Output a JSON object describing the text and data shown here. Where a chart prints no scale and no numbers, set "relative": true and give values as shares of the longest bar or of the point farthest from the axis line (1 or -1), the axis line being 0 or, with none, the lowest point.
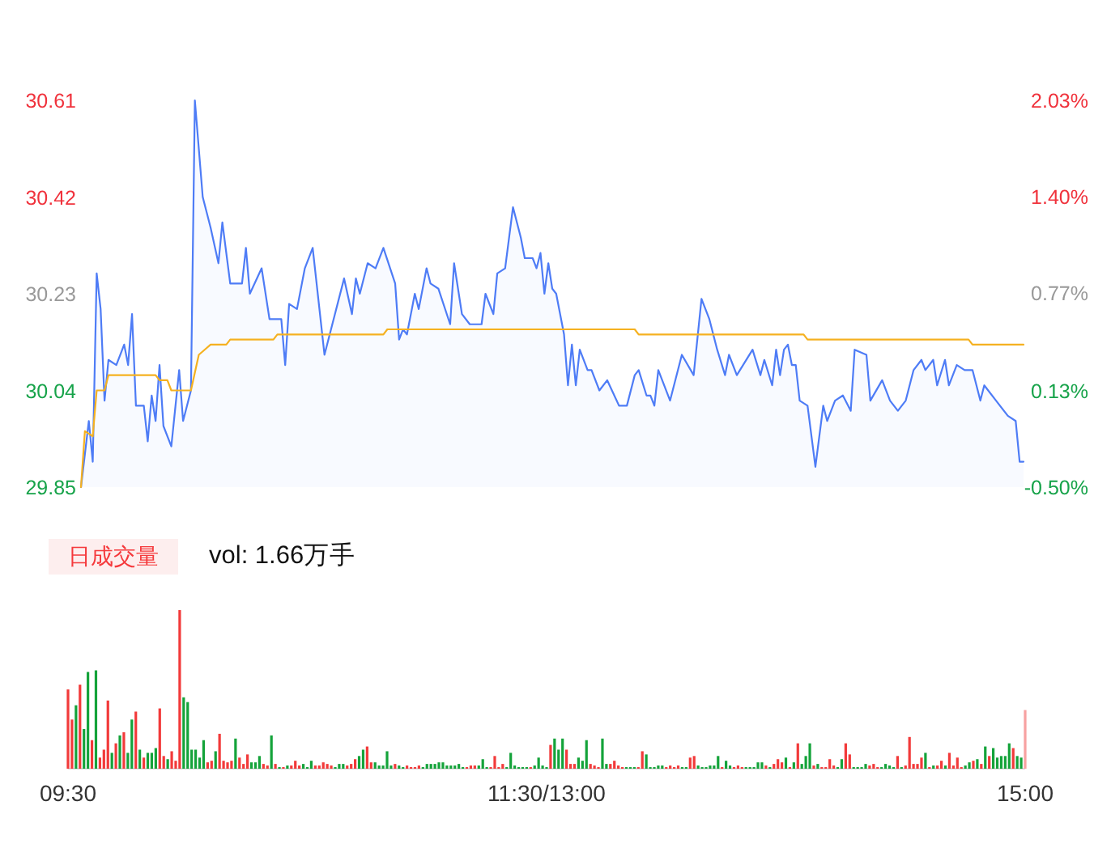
{
  "chart_data": [
    {
      "type": "area",
      "categories": [
        null,
        null,
        null,
        null,
        null,
        null,
        null,
        null,
        null,
        null,
        null,
        null,
        null,
        null,
        null,
        null,
        null,
        null,
        null,
        null,
        null,
        null,
        null,
        null,
        null,
        null,
        null,
        null,
        null,
        null,
        null,
        null,
        null,
        null,
        null,
        null,
        null,
        null,
        null,
        null,
        null,
        null,
        null,
        null,
        null,
        null,
        null,
        null,
        null,
        null,
        null,
        null,
        null,
        null,
        null,
        null,
        null,
        null,
        null,
        null,
        null,
        null,
        null,
        null,
        null,
        null,
        null,
        null,
        null,
        null,
        null,
        null,
        null,
        null,
        null,
        null,
        null,
        null,
        null,
        null,
        null,
        null,
        null,
        null,
        null,
        null,
        null,
        null,
        null,
        null,
        null,
        null,
        null,
        null,
        null,
        null,
        null,
        null,
        null,
        null,
        null,
        null,
        null,
        null,
        null,
        null,
        null,
        null,
        null,
        null,
        null,
        null,
        null,
        null,
        null,
        null,
        null,
        null,
        null,
        null,
        null,
        null,
        null,
        null,
        null,
        null,
        null,
        null,
        null,
        null,
        null,
        null,
        null,
        null,
        null,
        null,
        null,
        null,
        null,
        null,
        null,
        null,
        null,
        null,
        null,
        null,
        null,
        null,
        null,
        null,
        null,
        null,
        null,
        null,
        null,
        null,
        null,
        null,
        null,
        null,
        null,
        null,
        null,
        null,
        null,
        null,
        null,
        null,
        null,
        null,
        null,
        null,
        null,
        null,
        null,
        null,
        null,
        null,
        null,
        null,
        null,
        null,
        null,
        null,
        null,
        null,
        null,
        null,
        null,
        null,
        null,
        null,
        null,
        null,
        null,
        null,
        null,
        null,
        null,
        null,
        null,
        null,
        null,
        null,
        null,
        null,
        null,
        null,
        null,
        null,
        null,
        null,
        null,
        null,
        null,
        null,
        null,
        null,
        null,
        null,
        null,
        null,
        null,
        null,
        null,
        null,
        null,
        null,
        null,
        null,
        null,
        null,
        null,
        null,
        null,
        null,
        null,
        null,
        null,
        null,
        null
      ],
      "ylim": [
        29.85,
        30.61
      ],
      "yticks": [
        29.85,
        30.04,
        30.23,
        30.42,
        30.61
      ],
      "y2lim": [
        -0.5,
        2.03
      ],
      "y2ticks": [
        {
          "value": -0.5,
          "label": "-0.50%"
        },
        {
          "value": 0.13,
          "label": "0.13%"
        },
        {
          "value": 0.77,
          "label": "0.77%"
        },
        {
          "value": 1.4,
          "label": "1.40%"
        },
        {
          "value": 2.03,
          "label": "2.03%"
        }
      ],
      "tick_labels": "y",
      "series": [
        {
          "type": "area",
          "color": "#4e7cf6",
          "values": [
            29.85,
            null,
            29.98,
            29.9,
            30.27,
            30.2,
            30.02,
            30.1,
            null,
            30.09,
            null,
            30.13,
            30.09,
            30.19,
            30.01,
            null,
            30.01,
            29.94,
            30.03,
            29.98,
            30.09,
            29.97,
            null,
            29.93,
            null,
            30.08,
            29.98,
            null,
            30.04,
            30.61,
            null,
            30.42,
            null,
            30.36,
            null,
            30.29,
            30.37,
            null,
            30.25,
            null,
            null,
            30.25,
            30.32,
            30.23,
            null,
            null,
            30.28,
            null,
            30.18,
            null,
            null,
            30.18,
            30.09,
            30.21,
            null,
            30.2,
            null,
            30.28,
            null,
            30.32,
            null,
            null,
            30.11,
            null,
            30.17,
            null,
            null,
            30.26,
            null,
            30.19,
            30.26,
            30.23,
            null,
            30.29,
            null,
            30.28,
            null,
            30.32,
            null,
            null,
            30.25,
            30.14,
            30.16,
            30.15,
            null,
            30.23,
            30.2,
            null,
            30.28,
            30.25,
            null,
            30.24,
            null,
            null,
            30.17,
            30.29,
            null,
            30.19,
            null,
            30.17,
            null,
            null,
            30.17,
            30.23,
            null,
            30.19,
            30.27,
            null,
            30.28,
            null,
            30.4,
            null,
            30.34,
            30.3,
            null,
            30.3,
            30.28,
            30.31,
            30.23,
            30.29,
            30.24,
            30.23,
            null,
            30.15,
            30.05,
            30.13,
            30.05,
            30.12,
            null,
            30.08,
            30.08,
            null,
            30.04,
            null,
            30.06,
            null,
            null,
            30.01,
            null,
            30.01,
            null,
            30.07,
            30.08,
            null,
            30.03,
            30.03,
            30.01,
            30.08,
            null,
            null,
            30.02,
            null,
            null,
            30.11,
            null,
            null,
            30.07,
            null,
            30.22,
            null,
            30.18,
            null,
            30.12,
            null,
            30.07,
            30.11,
            null,
            30.07,
            null,
            null,
            null,
            30.12,
            null,
            30.07,
            30.1,
            null,
            30.05,
            30.12,
            30.07,
            30.12,
            30.13,
            30.09,
            30.09,
            30.02,
            null,
            30.01,
            null,
            29.89,
            null,
            30.01,
            29.98,
            null,
            30.02,
            null,
            30.03,
            null,
            30.0,
            30.12,
            null,
            null,
            30.11,
            30.02,
            null,
            null,
            30.06,
            null,
            30.02,
            null,
            30.0,
            null,
            30.02,
            null,
            30.08,
            null,
            30.1,
            30.08,
            null,
            30.1,
            30.05,
            null,
            30.1,
            30.05,
            null,
            30.09,
            null,
            30.08,
            null,
            30.08,
            null,
            30.02,
            30.05,
            null,
            null,
            30.02,
            null,
            null,
            29.99,
            null,
            29.98,
            29.9,
            29.9
          ]
        },
        {
          "type": "line",
          "color": "#f5b120",
          "values": [
            29.85,
            29.96,
            null,
            29.95,
            30.04,
            30.04,
            30.04,
            30.07,
            30.07,
            30.07,
            30.07,
            30.07,
            30.07,
            30.07,
            30.07,
            30.07,
            30.07,
            30.07,
            30.07,
            30.07,
            30.06,
            30.06,
            30.06,
            30.04,
            30.04,
            30.04,
            30.04,
            30.04,
            30.04,
            null,
            30.11,
            null,
            null,
            30.13,
            30.13,
            30.13,
            30.13,
            30.13,
            30.14,
            30.14,
            30.14,
            30.14,
            30.14,
            30.14,
            30.14,
            30.14,
            30.14,
            30.14,
            30.14,
            30.14,
            30.15,
            30.15,
            30.15,
            30.15,
            30.15,
            30.15,
            30.15,
            30.15,
            30.15,
            30.15,
            30.15,
            30.15,
            30.15,
            30.15,
            30.15,
            30.15,
            30.15,
            30.15,
            30.15,
            30.15,
            30.15,
            30.15,
            30.15,
            30.15,
            30.15,
            30.15,
            30.15,
            30.15,
            30.16,
            30.16,
            30.16,
            30.16,
            30.16,
            30.16,
            30.16,
            30.16,
            30.16,
            30.16,
            30.16,
            30.16,
            30.16,
            30.16,
            30.16,
            30.16,
            30.16,
            30.16,
            30.16,
            30.16,
            30.16,
            30.16,
            30.16,
            30.16,
            30.16,
            30.16,
            30.16,
            30.16,
            30.16,
            30.16,
            30.16,
            30.16,
            30.16,
            30.16,
            30.16,
            30.16,
            30.16,
            30.16,
            30.16,
            30.16,
            30.16,
            30.16,
            30.16,
            30.16,
            30.16,
            30.16,
            30.16,
            30.16,
            30.16,
            30.16,
            30.16,
            30.16,
            30.16,
            30.16,
            30.16,
            30.16,
            30.16,
            30.16,
            30.16,
            30.16,
            30.16,
            30.16,
            30.16,
            30.16,
            30.15,
            30.15,
            30.15,
            30.15,
            30.15,
            30.15,
            30.15,
            30.15,
            30.15,
            30.15,
            30.15,
            30.15,
            30.15,
            30.15,
            30.15,
            30.15,
            30.15,
            30.15,
            30.15,
            30.15,
            30.15,
            30.15,
            30.15,
            30.15,
            30.15,
            30.15,
            30.15,
            30.15,
            30.15,
            30.15,
            30.15,
            30.15,
            30.15,
            30.15,
            30.15,
            30.15,
            30.15,
            30.15,
            30.15,
            30.15,
            30.15,
            30.15,
            30.15,
            30.14,
            30.14,
            30.14,
            30.14,
            30.14,
            30.14,
            30.14,
            30.14,
            30.14,
            30.14,
            30.14,
            30.14,
            30.14,
            30.14,
            30.14,
            30.14,
            30.14,
            30.14,
            30.14,
            30.14,
            30.14,
            30.14,
            30.14,
            30.14,
            30.14,
            30.14,
            30.14,
            30.14,
            30.14,
            30.14,
            30.14,
            30.14,
            30.14,
            30.14,
            30.14,
            30.14,
            30.14,
            30.14,
            30.14,
            30.14,
            30.14,
            30.14,
            30.13,
            30.13,
            30.13,
            30.13,
            30.13,
            30.13,
            30.13,
            30.13,
            30.13,
            30.13,
            30.13,
            30.13,
            30.13,
            30.13
          ]
        }
      ]
    },
    {
      "type": "bar",
      "relative": true,
      "title": "日成交量",
      "subtitle": "vol: 1.66万手",
      "tick_labels": "x",
      "categories": [
        "09:30",
        null,
        null,
        null,
        null,
        null,
        null,
        null,
        null,
        null,
        null,
        null,
        null,
        null,
        null,
        null,
        null,
        null,
        null,
        null,
        null,
        null,
        null,
        null,
        null,
        null,
        null,
        null,
        null,
        null,
        null,
        null,
        null,
        null,
        null,
        null,
        null,
        null,
        null,
        null,
        null,
        null,
        null,
        null,
        null,
        null,
        null,
        null,
        null,
        null,
        null,
        null,
        null,
        null,
        null,
        null,
        null,
        null,
        null,
        null,
        null,
        null,
        null,
        null,
        null,
        null,
        null,
        null,
        null,
        null,
        null,
        null,
        null,
        null,
        null,
        null,
        null,
        null,
        null,
        null,
        null,
        null,
        null,
        null,
        null,
        null,
        null,
        null,
        null,
        null,
        null,
        null,
        null,
        null,
        null,
        null,
        null,
        null,
        null,
        null,
        null,
        null,
        null,
        null,
        null,
        null,
        null,
        null,
        null,
        null,
        null,
        null,
        null,
        null,
        null,
        null,
        null,
        null,
        null,
        null,
        "11:30/13:00",
        null,
        null,
        null,
        null,
        null,
        null,
        null,
        null,
        null,
        null,
        null,
        null,
        null,
        null,
        null,
        null,
        null,
        null,
        null,
        null,
        null,
        null,
        null,
        null,
        null,
        null,
        null,
        null,
        null,
        null,
        null,
        null,
        null,
        null,
        null,
        null,
        null,
        null,
        null,
        null,
        null,
        null,
        null,
        null,
        null,
        null,
        null,
        null,
        null,
        null,
        null,
        null,
        null,
        null,
        null,
        null,
        null,
        null,
        null,
        null,
        null,
        null,
        null,
        null,
        null,
        null,
        null,
        null,
        null,
        null,
        null,
        null,
        null,
        null,
        null,
        null,
        null,
        null,
        null,
        null,
        null,
        null,
        null,
        null,
        null,
        null,
        null,
        null,
        null,
        null,
        null,
        null,
        null,
        null,
        null,
        null,
        null,
        null,
        null,
        null,
        null,
        null,
        null,
        null,
        null,
        null,
        null,
        null,
        null,
        null,
        null,
        null,
        null,
        null,
        null,
        null,
        null,
        null,
        null,
        "15:00"
      ],
      "values": [
        0.5,
        0.31,
        0.4,
        0.53,
        0.25,
        0.61,
        0.18,
        0.62,
        0.07,
        0.12,
        0.43,
        0.1,
        0.16,
        0.21,
        0.23,
        0.1,
        0.31,
        0.36,
        0.12,
        0.07,
        0.1,
        0.1,
        0.13,
        0.38,
        0.08,
        0.06,
        0.11,
        0.05,
        1.0,
        0.45,
        0.42,
        0.12,
        0.12,
        0.07,
        0.18,
        0.04,
        0.05,
        0.11,
        0.22,
        0.05,
        0.04,
        0.05,
        0.19,
        0.07,
        0.03,
        0.09,
        0.04,
        0.04,
        0.08,
        0.03,
        0.02,
        0.21,
        0.03,
        0.01,
        0.01,
        0.02,
        0.02,
        0.05,
        0.02,
        0.03,
        0.01,
        0.05,
        0.02,
        0.02,
        0.04,
        0.03,
        0.02,
        0.01,
        0.03,
        0.03,
        0.02,
        0.03,
        0.06,
        0.08,
        0.12,
        0.14,
        0.04,
        0.04,
        0.02,
        0.02,
        0.11,
        0.02,
        0.03,
        0.02,
        0.01,
        0.02,
        0.01,
        0.01,
        0.02,
        0.01,
        0.03,
        0.03,
        0.03,
        0.04,
        0.04,
        0.02,
        0.02,
        0.02,
        0.03,
        0.01,
        0.01,
        0.02,
        0.02,
        0.02,
        0.06,
        0.01,
        0.01,
        0.08,
        0.01,
        0.03,
        0.01,
        0.1,
        0.02,
        0.01,
        0.01,
        0.01,
        0.01,
        0.02,
        0.07,
        0.02,
        0.01,
        0.15,
        0.19,
        0.12,
        0.19,
        0.12,
        0.03,
        0.03,
        0.07,
        0.05,
        0.18,
        0.03,
        0.02,
        0.01,
        0.19,
        0.03,
        0.03,
        0.05,
        0.02,
        0.01,
        0.01,
        0.01,
        0.01,
        0.01,
        0.11,
        0.09,
        0.01,
        0.01,
        0.02,
        0.02,
        0.01,
        0.02,
        0.01,
        0.02,
        0.01,
        0.01,
        0.07,
        0.08,
        0.02,
        0.01,
        0.01,
        0.02,
        0.02,
        0.08,
        0.01,
        0.05,
        0.02,
        0.01,
        0.02,
        0.01,
        0.01,
        0.01,
        0.01,
        0.04,
        0.04,
        0.02,
        0.01,
        0.03,
        0.06,
        0.04,
        0.07,
        0.01,
        0.04,
        0.16,
        0.03,
        0.08,
        0.16,
        0.02,
        0.03,
        0.01,
        0.01,
        0.06,
        0.02,
        0.01,
        0.06,
        0.16,
        0.09,
        0.01,
        0.01,
        0.01,
        0.03,
        0.02,
        0.03,
        0.01,
        0.01,
        0.03,
        0.02,
        0.01,
        0.08,
        0.01,
        0.02,
        0.2,
        0.03,
        0.03,
        0.07,
        0.1,
        0.01,
        0.02,
        0.02,
        0.05,
        0.02,
        0.1,
        0.02,
        0.07,
        0.01,
        0.02,
        0.04,
        0.05,
        0.06,
        0.03,
        0.14,
        0.08,
        0.13,
        0.07,
        0.08,
        0.08,
        0.16,
        0.13,
        0.08,
        0.07,
        0.37
      ],
      "colors": [
        "#f23a3a",
        "#f23a3a",
        "#14a33a",
        "#f23a3a",
        "#14a33a",
        "#14a33a",
        "#f23a3a",
        "#14a33a",
        "#f23a3a",
        "#f23a3a",
        "#f23a3a",
        "#14a33a",
        "#f23a3a",
        "#14a33a",
        "#f23a3a",
        "#14a33a",
        "#14a33a",
        "#f23a3a",
        "#14a33a",
        "#f23a3a",
        "#14a33a",
        "#14a33a",
        "#14a33a",
        "#f23a3a",
        "#f23a3a",
        "#14a33a",
        "#f23a3a",
        "#f23a3a",
        "#f23a3a",
        "#14a33a",
        "#14a33a",
        "#14a33a",
        "#14a33a",
        "#14a33a",
        "#14a33a",
        "#f23a3a",
        "#f23a3a",
        "#14a33a",
        "#f23a3a",
        "#f23a3a",
        "#f23a3a",
        "#f23a3a",
        "#14a33a",
        "#f23a3a",
        "#f23a3a",
        "#f23a3a",
        "#14a33a",
        "#14a33a",
        "#14a33a",
        "#f23a3a",
        "#f23a3a",
        "#14a33a",
        "#f23a3a",
        "#14a33a",
        "#f23a3a",
        "#14a33a",
        "#f23a3a",
        "#f23a3a",
        "#f23a3a",
        "#14a33a",
        "#14a33a",
        "#14a33a",
        "#f23a3a",
        "#f23a3a",
        "#f23a3a",
        "#f23a3a",
        "#f23a3a",
        "#14a33a",
        "#14a33a",
        "#14a33a",
        "#f23a3a",
        "#f23a3a",
        "#f23a3a",
        "#14a33a",
        "#14a33a",
        "#f23a3a",
        "#f23a3a",
        "#14a33a",
        "#14a33a",
        "#14a33a",
        "#14a33a",
        "#14a33a",
        "#f23a3a",
        "#14a33a",
        "#14a33a",
        "#f23a3a",
        "#f23a3a",
        "#f23a3a",
        "#f23a3a",
        "#14a33a",
        "#14a33a",
        "#14a33a",
        "#14a33a",
        "#14a33a",
        "#14a33a",
        "#14a33a",
        "#14a33a",
        "#14a33a",
        "#14a33a",
        "#14a33a",
        "#f23a3a",
        "#f23a3a",
        "#f23a3a",
        "#14a33a",
        "#14a33a",
        "#14a33a",
        "#f23a3a",
        "#f23a3a",
        "#f23a3a",
        "#f23a3a",
        "#14a33a",
        "#14a33a",
        "#14a33a",
        "#14a33a",
        "#14a33a",
        "#14a33a",
        "#f23a3a",
        "#14a33a",
        "#14a33a",
        "#14a33a",
        "#14a33a",
        "#f23a3a",
        "#14a33a",
        "#14a33a",
        "#14a33a",
        "#f23a3a",
        "#f23a3a",
        "#f23a3a",
        "#14a33a",
        "#14a33a",
        "#14a33a",
        "#f23a3a",
        "#f23a3a",
        "#f23a3a",
        "#14a33a",
        "#14a33a",
        "#f23a3a",
        "#f23a3a",
        "#f23a3a",
        "#f23a3a",
        "#14a33a",
        "#14a33a",
        "#14a33a",
        "#f23a3a",
        "#f23a3a",
        "#14a33a",
        "#14a33a",
        "#14a33a",
        "#14a33a",
        "#14a33a",
        "#f23a3a",
        "#f23a3a",
        "#f23a3a",
        "#f23a3a",
        "#14a33a",
        "#14a33a",
        "#f23a3a",
        "#f23a3a",
        "#14a33a",
        "#14a33a",
        "#14a33a",
        "#14a33a",
        "#14a33a",
        "#14a33a",
        "#f23a3a",
        "#14a33a",
        "#14a33a",
        "#f23a3a",
        "#f23a3a",
        "#f23a3a",
        "#14a33a",
        "#14a33a",
        "#14a33a",
        "#14a33a",
        "#14a33a",
        "#f23a3a",
        "#14a33a",
        "#f23a3a",
        "#f23a3a",
        "#f23a3a",
        "#14a33a",
        "#f23a3a",
        "#14a33a",
        "#f23a3a",
        "#14a33a",
        "#14a33a",
        "#14a33a",
        "#f23a3a",
        "#14a33a",
        "#f23a3a",
        "#f23a3a",
        "#f23a3a",
        "#f23a3a",
        "#14a33a",
        "#14a33a",
        "#f23a3a",
        "#f23a3a",
        "#14a33a",
        "#14a33a",
        "#14a33a",
        "#14a33a",
        "#f23a3a",
        "#f23a3a",
        "#f23a3a",
        "#14a33a",
        "#14a33a",
        "#14a33a",
        "#14a33a",
        "#f23a3a",
        "#14a33a",
        "#f23a3a",
        "#f23a3a",
        "#f23a3a",
        "#f23a3a",
        "#f23a3a",
        "#14a33a",
        "#f23a3a",
        "#14a33a",
        "#f23a3a",
        "#f23a3a",
        "#14a33a",
        "#f23a3a",
        "#f23a3a",
        "#f23a3a",
        "#f23a3a",
        "#14a33a",
        "#14a33a",
        "#f23a3a",
        "#14a33a",
        "#f23a3a",
        "#14a33a",
        "#f23a3a",
        "#14a33a",
        "#14a33a",
        "#14a33a",
        "#14a33a",
        "#14a33a",
        "#f23a3a",
        "#14a33a",
        "#14a33a",
        "#f7a1a1"
      ]
    }
  ]
}
